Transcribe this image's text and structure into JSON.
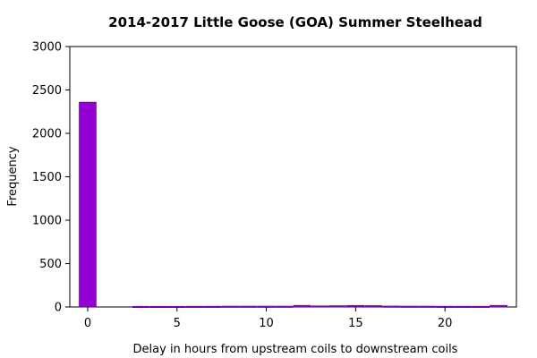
{
  "chart_data": {
    "type": "bar",
    "title": "2014-2017 Little Goose (GOA) Summer Steelhead",
    "xlabel": "Delay in hours from upstream coils to downstream coils",
    "ylabel": "Frequency",
    "xlim": [
      -1,
      24
    ],
    "ylim": [
      0,
      3000
    ],
    "xticks": [
      0,
      5,
      10,
      15,
      20
    ],
    "yticks": [
      0,
      500,
      1000,
      1500,
      2000,
      2500,
      3000
    ],
    "bar_color": "#9400d3",
    "categories": [
      0,
      3,
      4,
      5,
      6,
      7,
      8,
      9,
      10,
      11,
      12,
      13,
      14,
      15,
      16,
      17,
      18,
      19,
      20,
      21,
      22,
      23
    ],
    "values": [
      2360,
      8,
      8,
      8,
      9,
      9,
      10,
      10,
      10,
      10,
      19,
      13,
      15,
      18,
      16,
      11,
      10,
      10,
      9,
      9,
      9,
      19
    ]
  }
}
